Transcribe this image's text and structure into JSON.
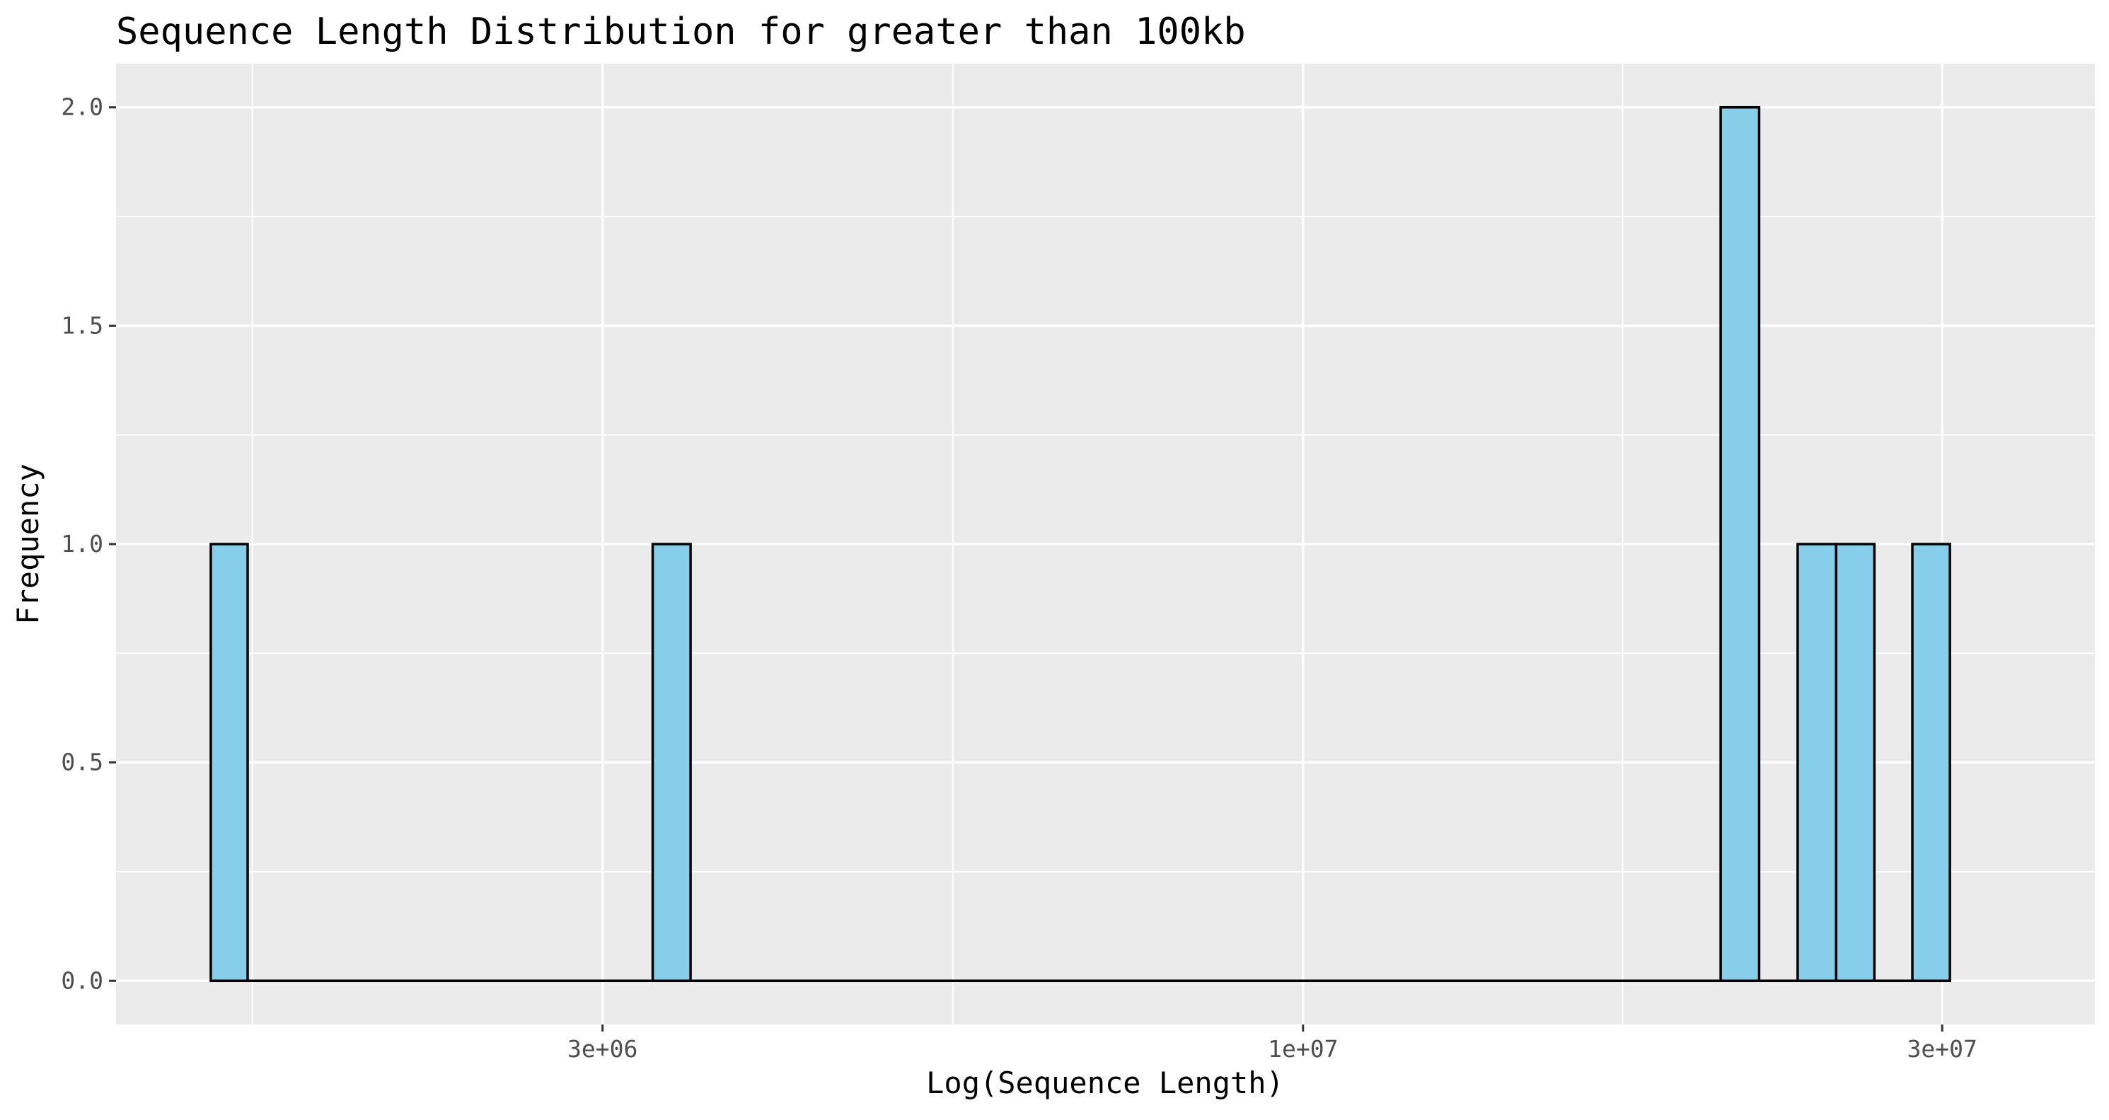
{
  "chart_data": {
    "type": "bar",
    "title": "Sequence Length Distribution for greater than 100kb",
    "xlabel": "Log(Sequence Length)",
    "ylabel": "Frequency",
    "x_scale": "log10",
    "xlim": [
      1300000,
      39000000
    ],
    "ylim": [
      -0.1,
      2.1
    ],
    "x_ticks": [
      {
        "value": 3000000,
        "label": "3e+06"
      },
      {
        "value": 10000000,
        "label": "1e+07"
      },
      {
        "value": 30000000,
        "label": "3e+07"
      }
    ],
    "y_ticks": [
      {
        "value": 0,
        "label": "0.0"
      },
      {
        "value": 0.5,
        "label": "0.5"
      },
      {
        "value": 1.0,
        "label": "1.0"
      },
      {
        "value": 1.5,
        "label": "1.5"
      },
      {
        "value": 2.0,
        "label": "2.0"
      }
    ],
    "bins": [
      {
        "x_start": 1530000,
        "x_end": 1630000,
        "count": 1
      },
      {
        "x_start": 3270000,
        "x_end": 3490000,
        "count": 1
      },
      {
        "x_start": 20500000,
        "x_end": 21900000,
        "count": 2
      },
      {
        "x_start": 23400000,
        "x_end": 25000000,
        "count": 1
      },
      {
        "x_start": 25000000,
        "x_end": 26700000,
        "count": 1
      },
      {
        "x_start": 28500000,
        "x_end": 30400000,
        "count": 1
      }
    ],
    "bar_fill": "#87ceeb",
    "bar_stroke": "#000000",
    "panel_background": "#ebebeb",
    "grid": true,
    "grid_color": "#ffffff"
  }
}
